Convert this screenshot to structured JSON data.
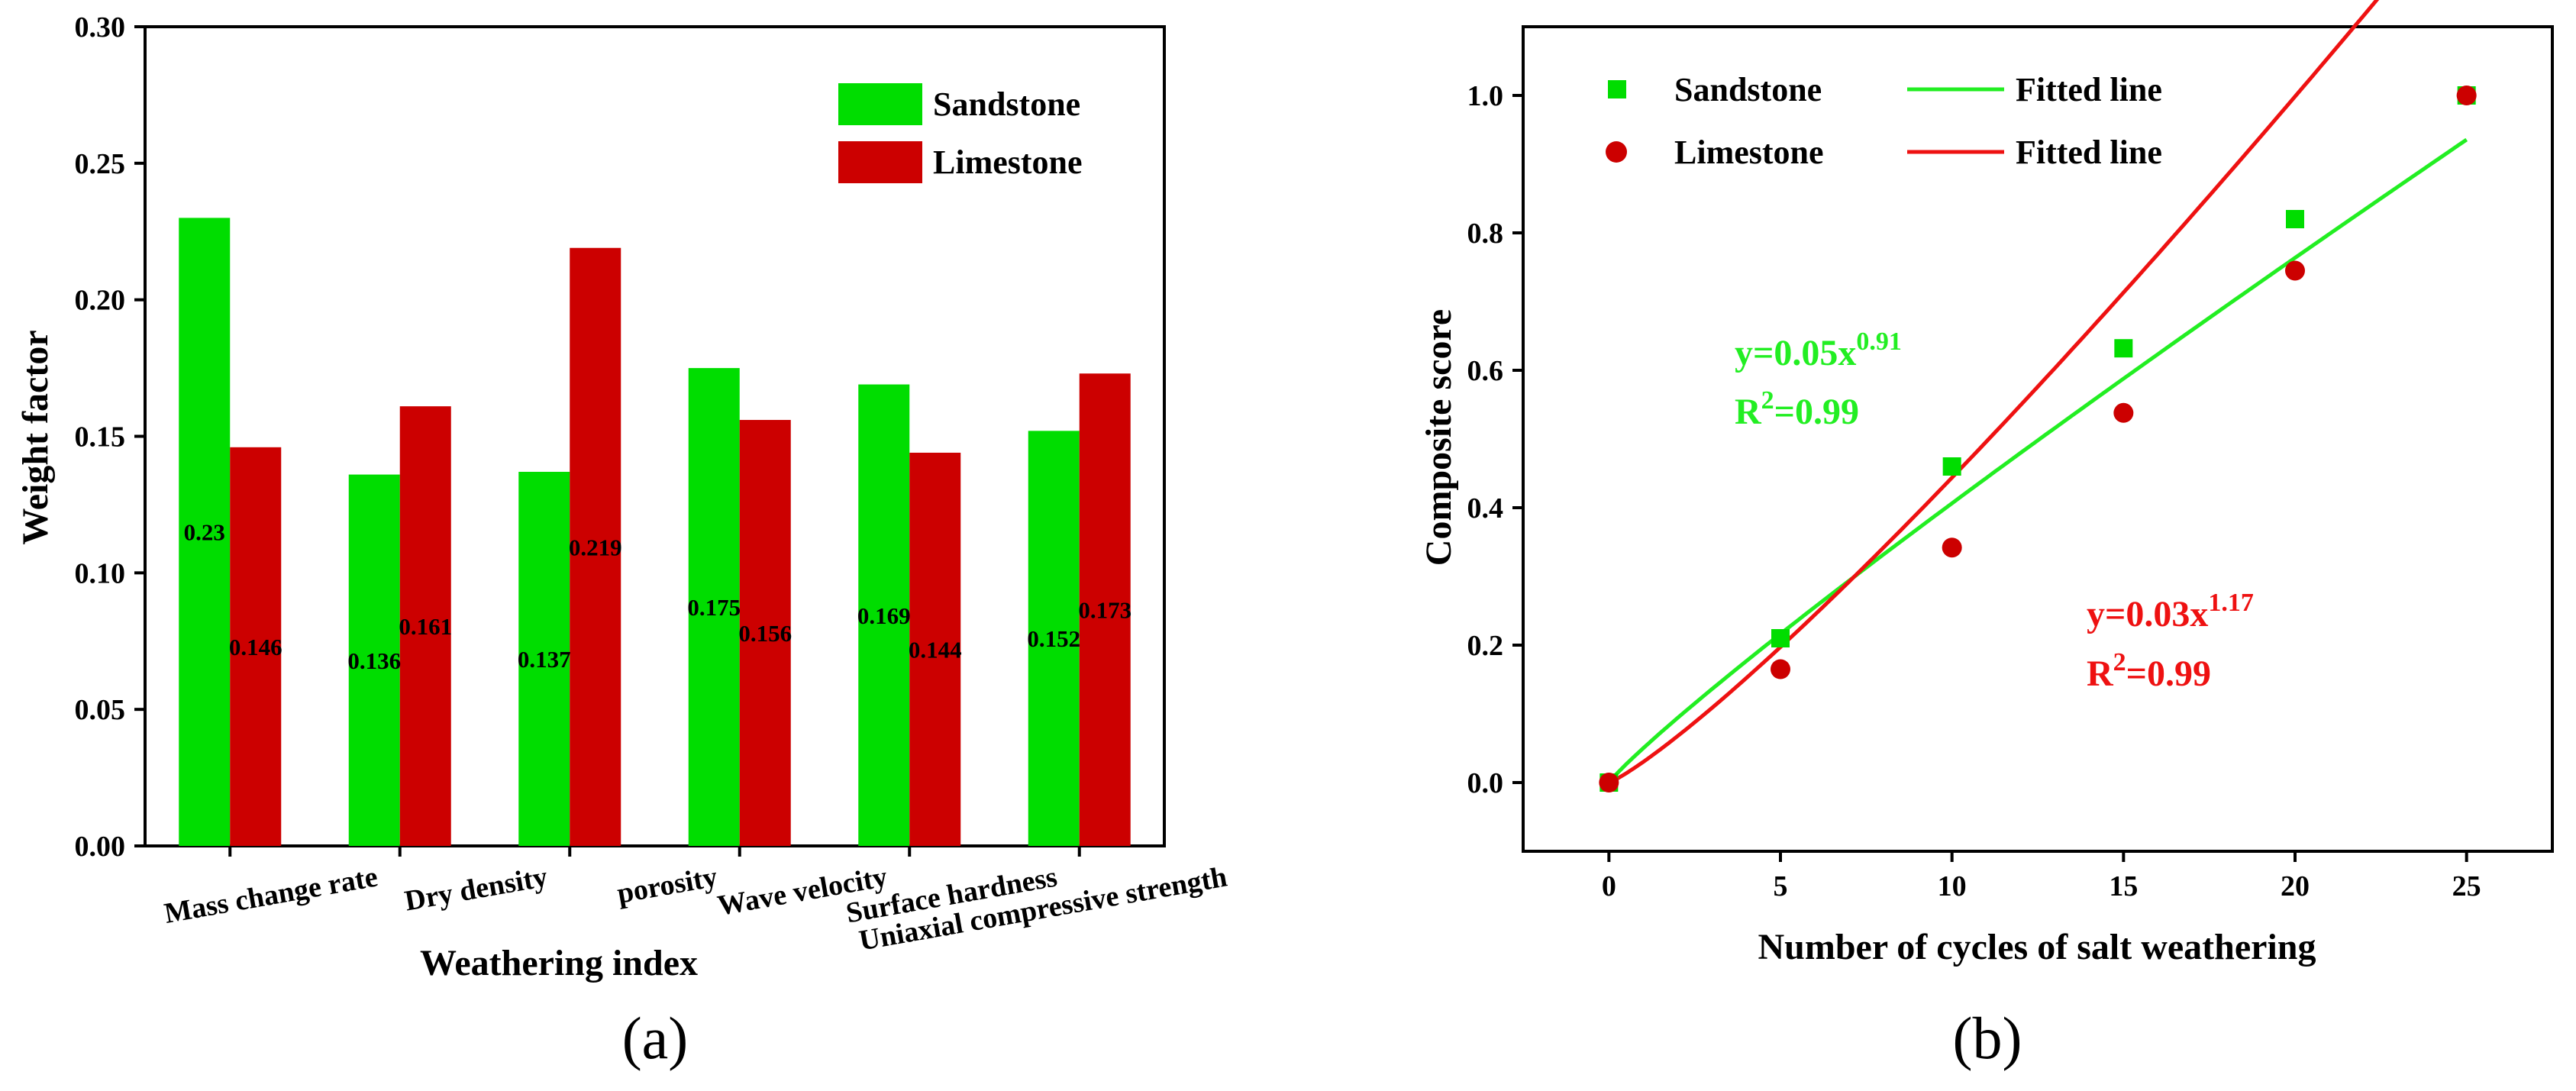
{
  "panels": {
    "a": {
      "label": "(a)"
    },
    "b": {
      "label": "(b)"
    }
  },
  "colors": {
    "sandstone": "#00dd00",
    "limestone": "#cc0000",
    "green_line": "#22ee22",
    "red_line": "#ee1111"
  },
  "chart_data": [
    {
      "id": "a",
      "type": "bar",
      "xlabel": "Weathering index",
      "ylabel": "Weight factor",
      "ylim": [
        0,
        0.3
      ],
      "yticks": [
        "0.00",
        "0.05",
        "0.10",
        "0.15",
        "0.20",
        "0.25",
        "0.30"
      ],
      "categories": [
        "Mass change rate",
        "Dry density",
        "porosity",
        "Wave velocity",
        "Surface hardness",
        "Uniaxial compressive strength"
      ],
      "series": [
        {
          "name": "Sandstone",
          "values": [
            0.23,
            0.136,
            0.137,
            0.175,
            0.169,
            0.152
          ],
          "labels": [
            "0.23",
            "0.136",
            "0.137",
            "0.175",
            "0.169",
            "0.152"
          ]
        },
        {
          "name": "Limestone",
          "values": [
            0.146,
            0.161,
            0.219,
            0.156,
            0.144,
            0.173
          ],
          "labels": [
            "0.146",
            "0.161",
            "0.219",
            "0.156",
            "0.144",
            "0.173"
          ]
        }
      ],
      "legend_position": "top-right"
    },
    {
      "id": "b",
      "type": "scatter",
      "xlabel": "Number of cycles of salt weathering",
      "ylabel": "Composite score",
      "xlim": [
        -2.5,
        27.5
      ],
      "ylim": [
        -0.1,
        1.1
      ],
      "xticks": [
        "0",
        "5",
        "10",
        "15",
        "20",
        "25"
      ],
      "yticks": [
        "0.0",
        "0.2",
        "0.4",
        "0.6",
        "0.8",
        "1.0"
      ],
      "series": [
        {
          "name": "Sandstone",
          "marker": "square",
          "x": [
            0,
            5,
            10,
            15,
            20,
            25
          ],
          "y": [
            0.0,
            0.21,
            0.46,
            0.632,
            0.82,
            1.0
          ]
        },
        {
          "name": "Limestone",
          "marker": "circle",
          "x": [
            0,
            5,
            10,
            15,
            20,
            25
          ],
          "y": [
            0.0,
            0.165,
            0.342,
            0.538,
            0.745,
            1.0
          ]
        }
      ],
      "fits": [
        {
          "name": "Fitted line",
          "series": "Sandstone",
          "coef": 0.05,
          "exp": 0.91,
          "equation_main": "y=0.05x",
          "equation_exp": "0.91",
          "r2_prefix": "R",
          "r2_sup": "2",
          "r2_value": "=0.99"
        },
        {
          "name": "Fitted line",
          "series": "Limestone",
          "coef": 0.03,
          "exp": 1.17,
          "equation_main": "y=0.03x",
          "equation_exp": "1.17",
          "r2_prefix": "R",
          "r2_sup": "2",
          "r2_value": "=0.99"
        }
      ],
      "legend_position": "top-left"
    }
  ]
}
